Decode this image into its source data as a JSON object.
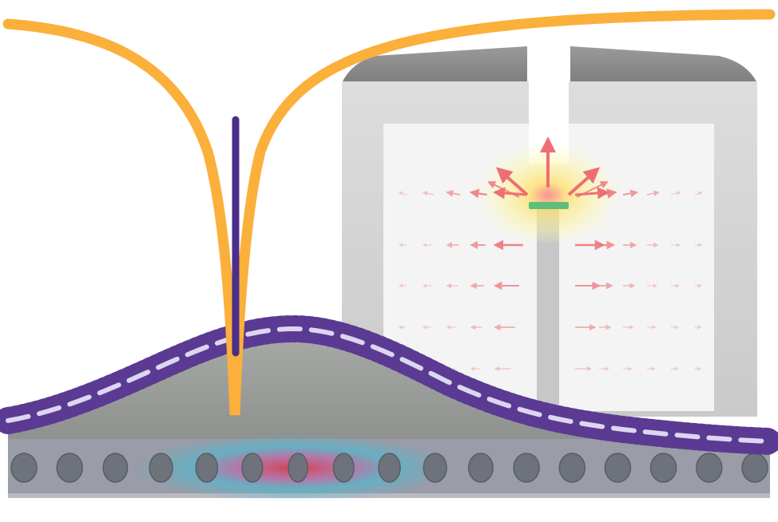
{
  "colors": {
    "background": "#ffffff",
    "dip_curve": "#fbb03b",
    "fiber": "#4b2d8a",
    "resonance_marker": "#4b2d8a",
    "mechanical_profile": "#5a3a92",
    "mechanical_dash": "#dcd6f0",
    "substrate_gray": "#9ea09e",
    "waveguide": "#9a9ca8",
    "hole": "#6e727a",
    "cavity_field_center": "#e0303c",
    "cavity_field_mid": "#3cc0d8",
    "device_frame": "#a9aaa9",
    "device_cap": "#8c8c8c",
    "device_inner": "#f3f4f3",
    "emitter": "#5fbf7a",
    "glow": "#fff176",
    "arrows": "#ef6e73"
  },
  "icons": {
    "emitter": "emitter-bar-icon",
    "field_arrow": "field-arrow-icon",
    "hole": "photonic-crystal-hole-icon"
  },
  "photonic_crystal": {
    "hole_count": 17,
    "cavity_center_index": 6
  },
  "emission_field": {
    "columns": 8,
    "rows": 5
  }
}
